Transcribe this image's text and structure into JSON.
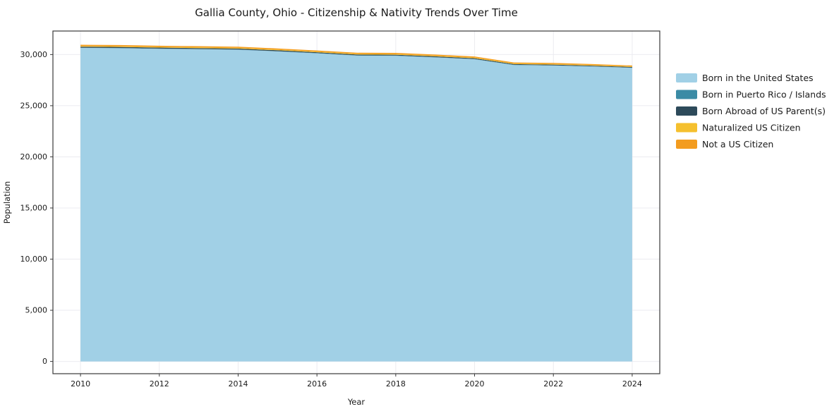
{
  "chart_data": {
    "type": "area",
    "stacked": true,
    "title": "Gallia County, Ohio - Citizenship & Nativity Trends Over Time",
    "xlabel": "Year",
    "ylabel": "Population",
    "grid": true,
    "legend_position": "right",
    "xlim": [
      2009.3,
      2024.7
    ],
    "ylim": [
      -1200,
      32300
    ],
    "xticks": [
      2010,
      2012,
      2014,
      2016,
      2018,
      2020,
      2022,
      2024
    ],
    "xtick_labels": [
      "2010",
      "2012",
      "2014",
      "2016",
      "2018",
      "2020",
      "2022",
      "2024"
    ],
    "yticks": [
      0,
      5000,
      10000,
      15000,
      20000,
      25000,
      30000
    ],
    "ytick_labels": [
      "0",
      "5,000",
      "10,000",
      "15,000",
      "20,000",
      "25,000",
      "30,000"
    ],
    "x": [
      2010,
      2011,
      2012,
      2013,
      2014,
      2015,
      2016,
      2017,
      2018,
      2019,
      2020,
      2021,
      2022,
      2023,
      2024
    ],
    "series": [
      {
        "name": "Born in the United States",
        "color": "#a1d0e6",
        "values": [
          30650,
          30620,
          30560,
          30520,
          30470,
          30310,
          30120,
          29900,
          29880,
          29720,
          29540,
          28980,
          28930,
          28830,
          28700
        ]
      },
      {
        "name": "Born in Puerto Rico / Islands",
        "color": "#3b8ba5",
        "values": [
          25,
          25,
          25,
          25,
          25,
          20,
          20,
          20,
          20,
          20,
          20,
          15,
          15,
          15,
          15
        ]
      },
      {
        "name": "Born Abroad of US Parent(s)",
        "color": "#2d4a5a",
        "values": [
          95,
          95,
          95,
          90,
          90,
          90,
          85,
          85,
          85,
          85,
          80,
          75,
          75,
          70,
          70
        ]
      },
      {
        "name": "Naturalized US Citizen",
        "color": "#f5c02e",
        "values": [
          70,
          70,
          70,
          70,
          70,
          70,
          70,
          70,
          70,
          65,
          65,
          60,
          60,
          60,
          60
        ]
      },
      {
        "name": "Not a US Citizen",
        "color": "#f39c1f",
        "values": [
          115,
          115,
          110,
          110,
          110,
          110,
          105,
          105,
          105,
          105,
          105,
          95,
          95,
          90,
          85
        ]
      }
    ]
  }
}
